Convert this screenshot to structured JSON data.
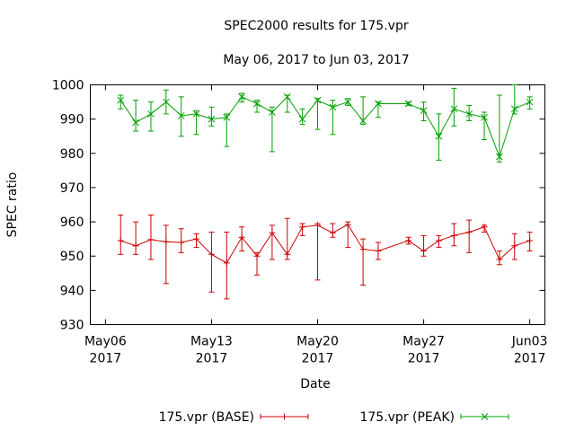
{
  "chart_data": {
    "type": "line",
    "title": "SPEC2000 results for 175.vpr",
    "subtitle": "May 06, 2017 to Jun 03, 2017",
    "xlabel": "Date",
    "ylabel": "SPEC ratio",
    "ylim": [
      930,
      1000
    ],
    "yticks": [
      930,
      940,
      950,
      960,
      970,
      980,
      990,
      1000
    ],
    "xlim": [
      "2017-05-05",
      "2017-06-04"
    ],
    "xticks": [
      {
        "date": "2017-05-06",
        "label_line1": "May06",
        "label_line2": "2017"
      },
      {
        "date": "2017-05-13",
        "label_line1": "May13",
        "label_line2": "2017"
      },
      {
        "date": "2017-05-20",
        "label_line1": "May20",
        "label_line2": "2017"
      },
      {
        "date": "2017-05-27",
        "label_line1": "May27",
        "label_line2": "2017"
      },
      {
        "date": "2017-06-03",
        "label_line1": "Jun03",
        "label_line2": "2017"
      }
    ],
    "legend_position": "bottom",
    "grid": false,
    "series": [
      {
        "name": "175.vpr (BASE)",
        "color": "#cc0000",
        "marker": "plus",
        "points": [
          {
            "x": "2017-05-07",
            "y": 954.5,
            "low": 950.5,
            "high": 962.0
          },
          {
            "x": "2017-05-08",
            "y": 953.0,
            "low": 950.5,
            "high": 960.0
          },
          {
            "x": "2017-05-09",
            "y": 954.8,
            "low": 949.0,
            "high": 962.0
          },
          {
            "x": "2017-05-10",
            "y": 954.2,
            "low": 942.0,
            "high": 959.0
          },
          {
            "x": "2017-05-11",
            "y": 954.0,
            "low": 951.0,
            "high": 958.0
          },
          {
            "x": "2017-05-12",
            "y": 955.0,
            "low": 952.5,
            "high": 956.5
          },
          {
            "x": "2017-05-13",
            "y": 950.5,
            "low": 939.5,
            "high": 957.0
          },
          {
            "x": "2017-05-14",
            "y": 948.0,
            "low": 937.5,
            "high": 957.0
          },
          {
            "x": "2017-05-15",
            "y": 955.5,
            "low": 951.5,
            "high": 958.5
          },
          {
            "x": "2017-05-16",
            "y": 950.0,
            "low": 944.5,
            "high": 951.0
          },
          {
            "x": "2017-05-17",
            "y": 956.8,
            "low": 949.0,
            "high": 959.0
          },
          {
            "x": "2017-05-18",
            "y": 950.5,
            "low": 949.0,
            "high": 961.0
          },
          {
            "x": "2017-05-19",
            "y": 958.5,
            "low": 956.0,
            "high": 959.5
          },
          {
            "x": "2017-05-20",
            "y": 959.0,
            "low": 943.0,
            "high": 959.5
          },
          {
            "x": "2017-05-21",
            "y": 956.8,
            "low": 955.5,
            "high": 959.5
          },
          {
            "x": "2017-05-22",
            "y": 959.2,
            "low": 952.5,
            "high": 960.0
          },
          {
            "x": "2017-05-23",
            "y": 952.0,
            "low": 941.5,
            "high": 955.0
          },
          {
            "x": "2017-05-24",
            "y": 951.5,
            "low": 949.0,
            "high": 954.0
          },
          {
            "x": "2017-05-26",
            "y": 954.5,
            "low": 953.5,
            "high": 955.5
          },
          {
            "x": "2017-05-27",
            "y": 951.5,
            "low": 950.0,
            "high": 956.0
          },
          {
            "x": "2017-05-28",
            "y": 954.5,
            "low": 952.5,
            "high": 956.0
          },
          {
            "x": "2017-05-29",
            "y": 956.0,
            "low": 953.0,
            "high": 959.5
          },
          {
            "x": "2017-05-30",
            "y": 957.0,
            "low": 951.0,
            "high": 960.5
          },
          {
            "x": "2017-05-31",
            "y": 958.5,
            "low": 957.0,
            "high": 959.0
          },
          {
            "x": "2017-06-01",
            "y": 949.0,
            "low": 947.5,
            "high": 951.5
          },
          {
            "x": "2017-06-02",
            "y": 953.0,
            "low": 949.0,
            "high": 956.5
          },
          {
            "x": "2017-06-03",
            "y": 954.5,
            "low": 951.5,
            "high": 957.0
          }
        ]
      },
      {
        "name": "175.vpr (PEAK)",
        "color": "#00a000",
        "marker": "cross",
        "points": [
          {
            "x": "2017-05-07",
            "y": 995.5,
            "low": 993.0,
            "high": 997.0
          },
          {
            "x": "2017-05-08",
            "y": 989.0,
            "low": 986.5,
            "high": 995.5
          },
          {
            "x": "2017-05-09",
            "y": 991.5,
            "low": 986.5,
            "high": 995.0
          },
          {
            "x": "2017-05-10",
            "y": 995.0,
            "low": 991.5,
            "high": 998.5
          },
          {
            "x": "2017-05-11",
            "y": 991.0,
            "low": 985.0,
            "high": 996.5
          },
          {
            "x": "2017-05-12",
            "y": 991.5,
            "low": 985.5,
            "high": 992.5
          },
          {
            "x": "2017-05-13",
            "y": 990.0,
            "low": 988.0,
            "high": 993.5
          },
          {
            "x": "2017-05-14",
            "y": 990.5,
            "low": 982.0,
            "high": 991.5
          },
          {
            "x": "2017-05-15",
            "y": 996.5,
            "low": 995.0,
            "high": 997.5
          },
          {
            "x": "2017-05-16",
            "y": 994.5,
            "low": 992.0,
            "high": 995.5
          },
          {
            "x": "2017-05-17",
            "y": 992.0,
            "low": 980.5,
            "high": 993.5
          },
          {
            "x": "2017-05-18",
            "y": 996.5,
            "low": 992.0,
            "high": 997.0
          },
          {
            "x": "2017-05-19",
            "y": 990.0,
            "low": 988.5,
            "high": 993.0
          },
          {
            "x": "2017-05-20",
            "y": 995.5,
            "low": 987.0,
            "high": 996.0
          },
          {
            "x": "2017-05-21",
            "y": 993.5,
            "low": 985.5,
            "high": 995.5
          },
          {
            "x": "2017-05-22",
            "y": 995.0,
            "low": 994.0,
            "high": 996.0
          },
          {
            "x": "2017-05-23",
            "y": 989.5,
            "low": 988.5,
            "high": 996.5
          },
          {
            "x": "2017-05-24",
            "y": 994.5,
            "low": 990.5,
            "high": 995.0
          },
          {
            "x": "2017-05-26",
            "y": 994.5,
            "low": 994.0,
            "high": 995.0
          },
          {
            "x": "2017-05-27",
            "y": 992.5,
            "low": 989.5,
            "high": 995.0
          },
          {
            "x": "2017-05-28",
            "y": 985.0,
            "low": 978.0,
            "high": 991.5
          },
          {
            "x": "2017-05-29",
            "y": 993.0,
            "low": 988.0,
            "high": 999.0
          },
          {
            "x": "2017-05-30",
            "y": 991.5,
            "low": 989.5,
            "high": 994.0
          },
          {
            "x": "2017-05-31",
            "y": 990.5,
            "low": 984.0,
            "high": 992.0
          },
          {
            "x": "2017-06-01",
            "y": 979.0,
            "low": 977.5,
            "high": 997.0
          },
          {
            "x": "2017-06-02",
            "y": 993.0,
            "low": 991.5,
            "high": 1000.0
          },
          {
            "x": "2017-06-03",
            "y": 995.0,
            "low": 993.0,
            "high": 996.5
          }
        ]
      }
    ]
  }
}
